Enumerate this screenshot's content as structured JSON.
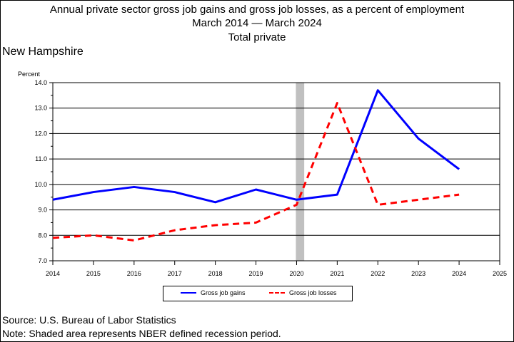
{
  "header": {
    "title_line1": "Annual private sector gross job gains and gross job losses, as a percent of employment",
    "title_line2": "March 2014 — March 2024",
    "title_line3": "Total private",
    "region": "New Hampshire"
  },
  "footer": {
    "source": "Source: U.S. Bureau of Labor Statistics",
    "note": "Note: Shaded area represents NBER defined recession period."
  },
  "chart_data": {
    "type": "line",
    "ylabel": "Percent",
    "xlim": [
      2014,
      2025
    ],
    "ylim": [
      7.0,
      14.0
    ],
    "x_ticks": [
      "2014",
      "2015",
      "2016",
      "2017",
      "2018",
      "2019",
      "2020",
      "2021",
      "2022",
      "2023",
      "2024",
      "2025"
    ],
    "y_ticks": [
      "7.0",
      "8.0",
      "9.0",
      "10.0",
      "11.0",
      "12.0",
      "13.0",
      "14.0"
    ],
    "grid": "horizontal",
    "recession_shading": [
      2020.0,
      2020.17
    ],
    "x": [
      2014,
      2015,
      2016,
      2017,
      2018,
      2019,
      2020,
      2021,
      2022,
      2023,
      2024
    ],
    "series": [
      {
        "name": "Gross job gains",
        "color": "#0000ff",
        "style": "solid",
        "values": [
          9.4,
          9.7,
          9.9,
          9.7,
          9.3,
          9.8,
          9.4,
          9.6,
          13.7,
          11.8,
          10.6
        ]
      },
      {
        "name": "Gross job losses",
        "color": "#ff0000",
        "style": "dashed",
        "values": [
          7.9,
          8.0,
          7.8,
          8.2,
          8.4,
          8.5,
          9.2,
          13.2,
          9.2,
          9.4,
          9.6
        ]
      }
    ],
    "legend_position": "bottom"
  }
}
